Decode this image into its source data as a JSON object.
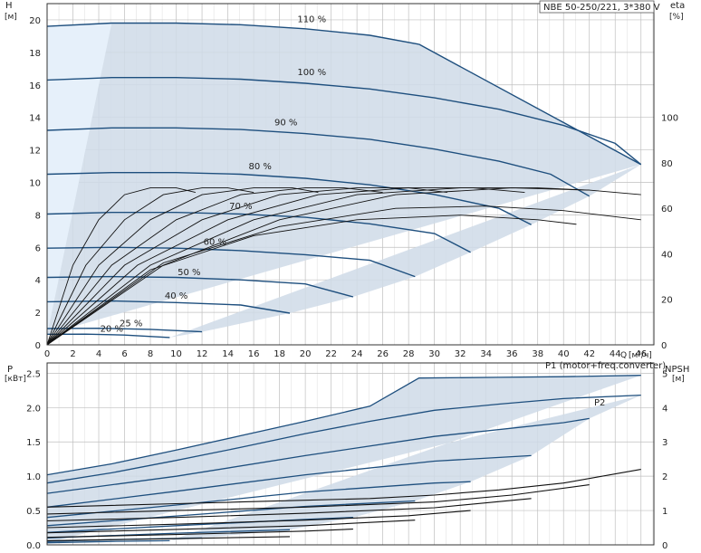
{
  "chart_data": [
    {
      "type": "line",
      "title": "NBE 50-250/221, 3*380 V",
      "xlabel": "Q [м³/ч]",
      "x_axis_label": "Q",
      "x_unit": "[м³/ч]",
      "ylabel": "H [м]",
      "y_axis_label": "H",
      "y_unit": "[м]",
      "y2label": "eta [%]",
      "y2_axis_label": "eta",
      "y2_unit": "[%]",
      "xlim": [
        0,
        47
      ],
      "ylim": [
        0,
        21
      ],
      "y2lim": [
        0,
        150
      ],
      "x_ticks": [
        0,
        2,
        4,
        6,
        8,
        10,
        12,
        14,
        16,
        18,
        20,
        22,
        24,
        26,
        28,
        30,
        32,
        34,
        36,
        38,
        40,
        42,
        44,
        46
      ],
      "y_ticks": [
        0,
        2,
        4,
        6,
        8,
        10,
        12,
        14,
        16,
        18,
        20
      ],
      "y2_ticks": [
        0,
        20,
        40,
        60,
        80,
        100
      ],
      "grid": true,
      "legend": "none",
      "series": [
        {
          "name": "110 %",
          "points": [
            [
              0,
              19.6
            ],
            [
              5,
              19.8
            ],
            [
              10,
              19.8
            ],
            [
              15,
              19.7
            ],
            [
              20,
              19.45
            ],
            [
              25,
              19.05
            ],
            [
              28.8,
              18.5
            ]
          ]
        },
        {
          "name": "100 %",
          "points": [
            [
              0,
              16.3
            ],
            [
              5,
              16.45
            ],
            [
              10,
              16.45
            ],
            [
              15,
              16.35
            ],
            [
              20,
              16.1
            ],
            [
              25,
              15.75
            ],
            [
              30,
              15.2
            ],
            [
              35,
              14.5
            ],
            [
              40,
              13.5
            ],
            [
              44,
              12.4
            ],
            [
              46,
              11.1
            ]
          ]
        },
        {
          "name": "90 %",
          "points": [
            [
              0,
              13.2
            ],
            [
              5,
              13.35
            ],
            [
              10,
              13.35
            ],
            [
              15,
              13.25
            ],
            [
              20,
              13.0
            ],
            [
              25,
              12.65
            ],
            [
              30,
              12.05
            ],
            [
              35,
              11.3
            ],
            [
              39,
              10.5
            ],
            [
              42,
              9.15
            ]
          ]
        },
        {
          "name": "80 %",
          "points": [
            [
              0,
              10.5
            ],
            [
              5,
              10.6
            ],
            [
              10,
              10.6
            ],
            [
              15,
              10.5
            ],
            [
              20,
              10.25
            ],
            [
              25,
              9.85
            ],
            [
              30,
              9.25
            ],
            [
              35,
              8.4
            ],
            [
              37.5,
              7.4
            ]
          ]
        },
        {
          "name": "70 %",
          "points": [
            [
              0,
              8.05
            ],
            [
              5,
              8.15
            ],
            [
              10,
              8.15
            ],
            [
              15,
              8.05
            ],
            [
              20,
              7.85
            ],
            [
              25,
              7.45
            ],
            [
              30,
              6.85
            ],
            [
              32.8,
              5.7
            ]
          ]
        },
        {
          "name": "60 %",
          "points": [
            [
              0,
              5.95
            ],
            [
              5,
              6.0
            ],
            [
              10,
              5.95
            ],
            [
              15,
              5.8
            ],
            [
              20,
              5.55
            ],
            [
              25,
              5.2
            ],
            [
              28.5,
              4.2
            ]
          ]
        },
        {
          "name": "50 %",
          "points": [
            [
              0,
              4.15
            ],
            [
              5,
              4.2
            ],
            [
              10,
              4.15
            ],
            [
              15,
              4.0
            ],
            [
              20,
              3.75
            ],
            [
              23.7,
              2.95
            ]
          ]
        },
        {
          "name": "40 %",
          "points": [
            [
              0,
              2.65
            ],
            [
              5,
              2.7
            ],
            [
              10,
              2.6
            ],
            [
              15,
              2.45
            ],
            [
              18.8,
              1.95
            ]
          ]
        },
        {
          "name": "25 %",
          "points": [
            [
              0,
              1.0
            ],
            [
              4,
              1.02
            ],
            [
              8,
              0.95
            ],
            [
              12,
              0.8
            ]
          ]
        },
        {
          "name": "20 %",
          "points": [
            [
              0,
              0.65
            ],
            [
              3,
              0.66
            ],
            [
              6,
              0.6
            ],
            [
              9.5,
              0.45
            ]
          ]
        }
      ],
      "efficiency_series": [
        {
          "points": [
            [
              0,
              0
            ],
            [
              2,
              35
            ],
            [
              4,
              55
            ],
            [
              6,
              66
            ],
            [
              8,
              69
            ],
            [
              10,
              69
            ],
            [
              11.5,
              67
            ]
          ]
        },
        {
          "points": [
            [
              0,
              0
            ],
            [
              3,
              35
            ],
            [
              6,
              55
            ],
            [
              9,
              66
            ],
            [
              12,
              69
            ],
            [
              14,
              69
            ],
            [
              16,
              67
            ]
          ]
        },
        {
          "points": [
            [
              0,
              0
            ],
            [
              4,
              35
            ],
            [
              8,
              55
            ],
            [
              12,
              66
            ],
            [
              16,
              69
            ],
            [
              19,
              69
            ],
            [
              21,
              67
            ]
          ]
        },
        {
          "points": [
            [
              0,
              0
            ],
            [
              5,
              35
            ],
            [
              10,
              55
            ],
            [
              15,
              66
            ],
            [
              20,
              69
            ],
            [
              23,
              69
            ],
            [
              26,
              67
            ]
          ]
        },
        {
          "points": [
            [
              0,
              0
            ],
            [
              6,
              35
            ],
            [
              12,
              55
            ],
            [
              18,
              66
            ],
            [
              24,
              69
            ],
            [
              28,
              69
            ],
            [
              31,
              67
            ]
          ]
        },
        {
          "points": [
            [
              0,
              0
            ],
            [
              7,
              35
            ],
            [
              14,
              55
            ],
            [
              21,
              66
            ],
            [
              28,
              69
            ],
            [
              33,
              69
            ],
            [
              37,
              67
            ]
          ]
        },
        {
          "points": [
            [
              0,
              0
            ],
            [
              8,
              35
            ],
            [
              16,
              55
            ],
            [
              24,
              66
            ],
            [
              32,
              69
            ],
            [
              38,
              69
            ],
            [
              42,
              68
            ]
          ]
        },
        {
          "points": [
            [
              0,
              0
            ],
            [
              9,
              35
            ],
            [
              18,
              55
            ],
            [
              27,
              66
            ],
            [
              36,
              69
            ],
            [
              42,
              68
            ],
            [
              46,
              66
            ]
          ]
        },
        {
          "points": [
            [
              0,
              0
            ],
            [
              9,
              36
            ],
            [
              18,
              52
            ],
            [
              27,
              60
            ],
            [
              34,
              61
            ],
            [
              40,
              59
            ],
            [
              46,
              55
            ]
          ]
        },
        {
          "points": [
            [
              0,
              0
            ],
            [
              8,
              33
            ],
            [
              16,
              48
            ],
            [
              24,
              55
            ],
            [
              32,
              57
            ],
            [
              38,
              55
            ],
            [
              41,
              53
            ]
          ]
        }
      ],
      "curve_labels": [
        "110 %",
        "100 %",
        "90 %",
        "80 %",
        "70 %",
        "60 %",
        "50 %",
        "40 %",
        "25 %",
        "20 %"
      ]
    },
    {
      "type": "line",
      "xlim": [
        0,
        47
      ],
      "ylabel": "P [кВт]",
      "y_axis_label": "P",
      "y_unit": "[кВт]",
      "y2label": "NPSH [м]",
      "y2_axis_label": "NPSH",
      "y2_unit": "[м]",
      "ylim": [
        0,
        2.65
      ],
      "y2lim": [
        0,
        5.3
      ],
      "y_ticks": [
        0.0,
        0.5,
        1.0,
        1.5,
        2.0,
        2.5
      ],
      "y_tick_labels": [
        "0.0",
        "0.5",
        "1.0",
        "1.5",
        "2.0",
        "2.5"
      ],
      "y2_ticks": [
        0,
        1,
        2,
        3,
        4,
        5
      ],
      "grid": true,
      "series": [
        {
          "name": "P1 (motor+freq.converter)",
          "points": [
            [
              0,
              1.02
            ],
            [
              5,
              1.18
            ],
            [
              10,
              1.38
            ],
            [
              15,
              1.59
            ],
            [
              20,
              1.8
            ],
            [
              25,
              2.02
            ],
            [
              28.8,
              2.43
            ],
            [
              35,
              2.44
            ],
            [
              40,
              2.45
            ],
            [
              46,
              2.47
            ]
          ]
        },
        {
          "name": "P2",
          "points": [
            [
              0,
              0.9
            ],
            [
              5,
              1.05
            ],
            [
              10,
              1.23
            ],
            [
              15,
              1.42
            ],
            [
              20,
              1.62
            ],
            [
              25,
              1.8
            ],
            [
              30,
              1.96
            ],
            [
              35,
              2.05
            ],
            [
              40,
              2.13
            ],
            [
              46,
              2.18
            ]
          ]
        },
        {
          "name": "",
          "points": [
            [
              0,
              0.75
            ],
            [
              10,
              1.0
            ],
            [
              20,
              1.3
            ],
            [
              30,
              1.58
            ],
            [
              40,
              1.78
            ],
            [
              42,
              1.84
            ]
          ]
        },
        {
          "name": "",
          "points": [
            [
              0,
              0.55
            ],
            [
              10,
              0.78
            ],
            [
              20,
              1.02
            ],
            [
              30,
              1.22
            ],
            [
              37.5,
              1.3
            ]
          ]
        },
        {
          "name": "",
          "points": [
            [
              0,
              0.4
            ],
            [
              10,
              0.58
            ],
            [
              20,
              0.77
            ],
            [
              30,
              0.9
            ],
            [
              32.8,
              0.92
            ]
          ]
        },
        {
          "name": "",
          "points": [
            [
              0,
              0.28
            ],
            [
              10,
              0.42
            ],
            [
              20,
              0.56
            ],
            [
              28.5,
              0.64
            ]
          ]
        },
        {
          "name": "",
          "points": [
            [
              0,
              0.18
            ],
            [
              10,
              0.28
            ],
            [
              20,
              0.37
            ],
            [
              23.7,
              0.4
            ]
          ]
        },
        {
          "name": "",
          "points": [
            [
              0,
              0.1
            ],
            [
              10,
              0.17
            ],
            [
              18.8,
              0.22
            ]
          ]
        },
        {
          "name": "",
          "points": [
            [
              0,
              0.05
            ],
            [
              6,
              0.08
            ],
            [
              12,
              0.1
            ]
          ]
        },
        {
          "name": "",
          "points": [
            [
              0,
              0.03
            ],
            [
              5,
              0.05
            ],
            [
              9.5,
              0.06
            ]
          ]
        }
      ],
      "npsh_series": [
        {
          "points": [
            [
              0,
              1.1
            ],
            [
              5,
              1.15
            ],
            [
              10,
              1.2
            ],
            [
              15,
              1.25
            ],
            [
              20,
              1.3
            ],
            [
              25,
              1.35
            ],
            [
              30,
              1.45
            ],
            [
              35,
              1.6
            ],
            [
              40,
              1.8
            ],
            [
              46,
              2.2
            ]
          ]
        },
        {
          "points": [
            [
              0,
              0.9
            ],
            [
              10,
              1.0
            ],
            [
              20,
              1.1
            ],
            [
              30,
              1.25
            ],
            [
              36,
              1.45
            ],
            [
              42,
              1.75
            ]
          ]
        },
        {
          "points": [
            [
              0,
              0.7
            ],
            [
              10,
              0.8
            ],
            [
              20,
              0.92
            ],
            [
              30,
              1.08
            ],
            [
              37.5,
              1.35
            ]
          ]
        },
        {
          "points": [
            [
              0,
              0.5
            ],
            [
              10,
              0.6
            ],
            [
              20,
              0.72
            ],
            [
              28,
              0.85
            ],
            [
              32.8,
              1.0
            ]
          ]
        },
        {
          "points": [
            [
              0,
              0.35
            ],
            [
              10,
              0.45
            ],
            [
              20,
              0.56
            ],
            [
              28.5,
              0.72
            ]
          ]
        },
        {
          "points": [
            [
              0,
              0.22
            ],
            [
              10,
              0.3
            ],
            [
              20,
              0.4
            ],
            [
              23.7,
              0.46
            ]
          ]
        },
        {
          "points": [
            [
              0,
              0.12
            ],
            [
              10,
              0.18
            ],
            [
              18.8,
              0.24
            ]
          ]
        }
      ],
      "curve_labels": [
        "P1 (motor+freq.converter)",
        "P2"
      ]
    }
  ]
}
